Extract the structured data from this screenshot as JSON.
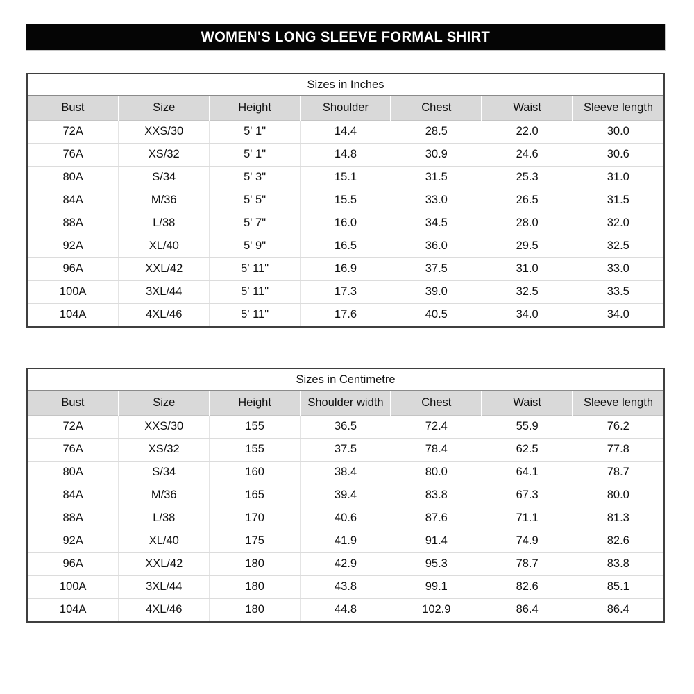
{
  "banner": {
    "title": "WOMEN'S LONG SLEEVE FORMAL SHIRT",
    "bg_color": "#050505",
    "text_color": "#ffffff"
  },
  "colors": {
    "header_row_bg": "#d9d9d9",
    "table_border": "#3f3f3f",
    "gridline": "#dcdcdc",
    "page_bg": "#ffffff",
    "text": "#111111"
  },
  "tables": [
    {
      "title": "Sizes in Inches",
      "columns": [
        "Bust",
        "Size",
        "Height",
        "Shoulder",
        "Chest",
        "Waist",
        "Sleeve length"
      ],
      "rows": [
        [
          "72A",
          "XXS/30",
          "5' 1\"",
          "14.4",
          "28.5",
          "22.0",
          "30.0"
        ],
        [
          "76A",
          "XS/32",
          "5' 1\"",
          "14.8",
          "30.9",
          "24.6",
          "30.6"
        ],
        [
          "80A",
          "S/34",
          "5' 3\"",
          "15.1",
          "31.5",
          "25.3",
          "31.0"
        ],
        [
          "84A",
          "M/36",
          "5' 5\"",
          "15.5",
          "33.0",
          "26.5",
          "31.5"
        ],
        [
          "88A",
          "L/38",
          "5' 7\"",
          "16.0",
          "34.5",
          "28.0",
          "32.0"
        ],
        [
          "92A",
          "XL/40",
          "5' 9\"",
          "16.5",
          "36.0",
          "29.5",
          "32.5"
        ],
        [
          "96A",
          "XXL/42",
          "5' 11\"",
          "16.9",
          "37.5",
          "31.0",
          "33.0"
        ],
        [
          "100A",
          "3XL/44",
          "5' 11\"",
          "17.3",
          "39.0",
          "32.5",
          "33.5"
        ],
        [
          "104A",
          "4XL/46",
          "5' 11\"",
          "17.6",
          "40.5",
          "34.0",
          "34.0"
        ]
      ]
    },
    {
      "title": "Sizes in Centimetre",
      "columns": [
        "Bust",
        "Size",
        "Height",
        "Shoulder width",
        "Chest",
        "Waist",
        "Sleeve length"
      ],
      "rows": [
        [
          "72A",
          "XXS/30",
          "155",
          "36.5",
          "72.4",
          "55.9",
          "76.2"
        ],
        [
          "76A",
          "XS/32",
          "155",
          "37.5",
          "78.4",
          "62.5",
          "77.8"
        ],
        [
          "80A",
          "S/34",
          "160",
          "38.4",
          "80.0",
          "64.1",
          "78.7"
        ],
        [
          "84A",
          "M/36",
          "165",
          "39.4",
          "83.8",
          "67.3",
          "80.0"
        ],
        [
          "88A",
          "L/38",
          "170",
          "40.6",
          "87.6",
          "71.1",
          "81.3"
        ],
        [
          "92A",
          "XL/40",
          "175",
          "41.9",
          "91.4",
          "74.9",
          "82.6"
        ],
        [
          "96A",
          "XXL/42",
          "180",
          "42.9",
          "95.3",
          "78.7",
          "83.8"
        ],
        [
          "100A",
          "3XL/44",
          "180",
          "43.8",
          "99.1",
          "82.6",
          "85.1"
        ],
        [
          "104A",
          "4XL/46",
          "180",
          "44.8",
          "102.9",
          "86.4",
          "86.4"
        ]
      ]
    }
  ]
}
